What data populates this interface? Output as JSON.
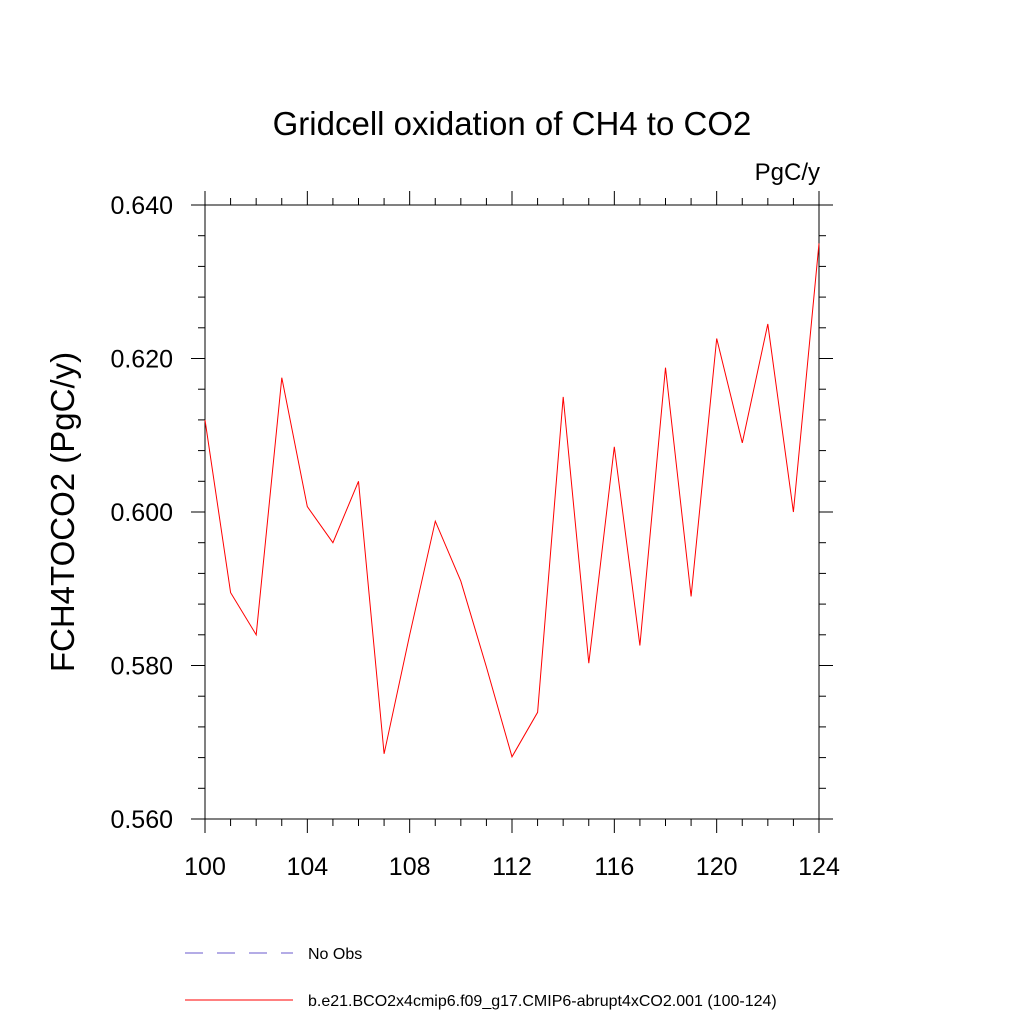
{
  "chart_data": {
    "type": "line",
    "title": "Gridcell oxidation of CH4 to CO2",
    "units_label": "PgC/y",
    "xlabel": "",
    "ylabel": "FCH4TOCO2  (PgC/y)",
    "xlim": [
      100,
      124
    ],
    "ylim": [
      0.56,
      0.64
    ],
    "x_ticks": [
      100,
      104,
      108,
      112,
      116,
      120,
      124
    ],
    "x_tick_labels": [
      "100",
      "104",
      "108",
      "112",
      "116",
      "120",
      "124"
    ],
    "y_ticks": [
      0.56,
      0.58,
      0.6,
      0.62,
      0.64
    ],
    "y_tick_labels": [
      "0.560",
      "0.580",
      "0.600",
      "0.620",
      "0.640"
    ],
    "grid": false,
    "legend_position": "bottom",
    "series": [
      {
        "name": "b.e21.BCO2x4cmip6.f09_g17.CMIP6-abrupt4xCO2.001 (100-124)",
        "color": "#ff0000",
        "style": "solid",
        "x": [
          100,
          101,
          102,
          103,
          104,
          105,
          106,
          107,
          108,
          109,
          110,
          111,
          112,
          113,
          114,
          115,
          116,
          117,
          118,
          119,
          120,
          121,
          122,
          123,
          124
        ],
        "values": [
          0.612,
          0.5895,
          0.584,
          0.6175,
          0.6007,
          0.596,
          0.604,
          0.5685,
          0.584,
          0.5988,
          0.591,
          0.5798,
          0.5681,
          0.5739,
          0.615,
          0.5803,
          0.6085,
          0.5826,
          0.6188,
          0.589,
          0.6226,
          0.609,
          0.6245,
          0.6,
          0.635
        ]
      }
    ],
    "legend": [
      {
        "label": "No Obs",
        "color": "#6a5acd",
        "style": "dashed"
      },
      {
        "label": "b.e21.BCO2x4cmip6.f09_g17.CMIP6-abrupt4xCO2.001 (100-124)",
        "color": "#ff0000",
        "style": "solid"
      }
    ]
  }
}
